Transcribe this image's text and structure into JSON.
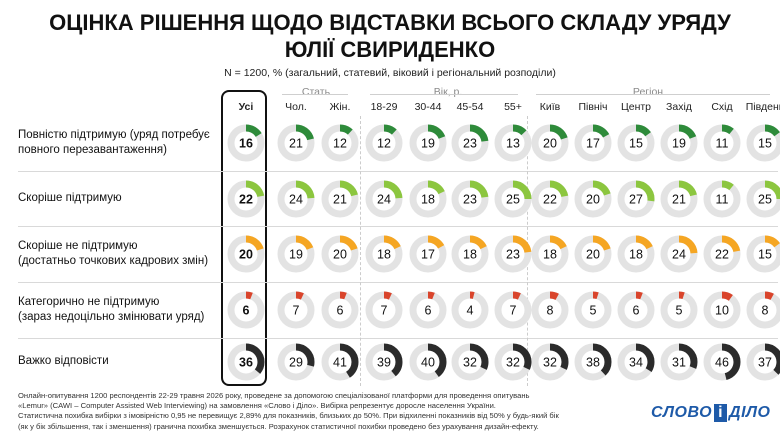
{
  "title_line1": "ОЦІНКА РІШЕННЯ ЩОДО ВІДСТАВКИ ВСЬОГО СКЛАДУ УРЯДУ",
  "title_line2": "ЮЛІЇ СВИРИДЕНКО",
  "subtitle": "N = 1200, % (загальний, статевий, віковий і регіональний розподіли)",
  "colors": {
    "fully_support": "#2e8b3a",
    "rather_support": "#8cc63f",
    "rather_not_support": "#f5a623",
    "categorically_not": "#d9442b",
    "hard_to_say": "#2b2b2b",
    "ring_background": "#e3e3e3"
  },
  "chart_data": {
    "type": "table",
    "groups": [
      {
        "label": "Стать"
      },
      {
        "label": "Вік, р."
      },
      {
        "label": "Регіон"
      }
    ],
    "columns": [
      "Усі",
      "Чол.",
      "Жін.",
      "18-29",
      "30-44",
      "45-54",
      "55+",
      "Київ",
      "Північ",
      "Центр",
      "Захід",
      "Схід",
      "Південь"
    ],
    "rows": [
      {
        "label_line1": "Повністю підтримую (уряд потребує",
        "label_line2": "повного перезавантаження)",
        "color_key": "fully_support",
        "values": [
          16,
          21,
          12,
          12,
          19,
          23,
          13,
          20,
          17,
          15,
          19,
          11,
          15
        ]
      },
      {
        "label_line1": "Скоріше підтримую",
        "label_line2": "",
        "color_key": "rather_support",
        "values": [
          22,
          24,
          21,
          24,
          18,
          23,
          25,
          22,
          20,
          27,
          21,
          11,
          25
        ]
      },
      {
        "label_line1": "Скоріше не підтримую",
        "label_line2": "(достатньо точкових кадрових змін)",
        "color_key": "rather_not_support",
        "values": [
          20,
          19,
          20,
          18,
          17,
          18,
          23,
          18,
          20,
          18,
          24,
          22,
          15
        ]
      },
      {
        "label_line1": "Категорично не підтримую",
        "label_line2": "(зараз недоцільно змінювати уряд)",
        "color_key": "categorically_not",
        "values": [
          6,
          7,
          6,
          7,
          6,
          4,
          7,
          8,
          5,
          6,
          5,
          10,
          8
        ]
      },
      {
        "label_line1": "Важко відповісти",
        "label_line2": "",
        "color_key": "hard_to_say",
        "values": [
          36,
          29,
          41,
          39,
          40,
          32,
          32,
          32,
          38,
          34,
          31,
          46,
          37
        ]
      }
    ]
  },
  "footnote": [
    "Онлайн-опитування 1200 респондентів 22-29 травня 2026 року, проведене за допомогою спеціалізованої платформи для проведення опитувань",
    "«Lemur» (CAWI – Computer Assisted Web Interviewing) на замовлення «Слово і Діло». Вибірка репрезентує доросле населення України.",
    "Статистична похибка вибірки з імовірністю 0,95 не перевищує 2,89% для показників, близьких до 50%. При відхиленні показників від 50% у будь-який бік",
    "(як у бік збільшення, так і зменшення) гранична похибка зменшується. Розрахунок статистичної похибки проведено без урахування дизайн-ефекту."
  ],
  "logo": {
    "word1": "СЛОВО",
    "amp": "і",
    "word2": "ДІЛО"
  }
}
